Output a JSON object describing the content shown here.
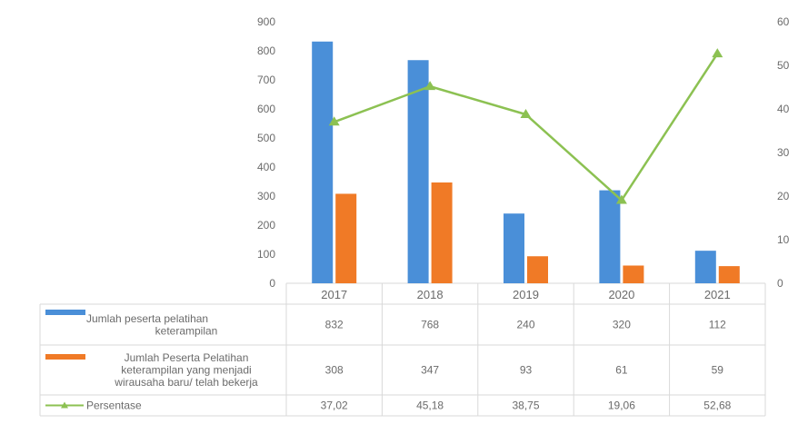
{
  "chart_data": {
    "type": "bar",
    "categories": [
      "2017",
      "2018",
      "2019",
      "2020",
      "2021"
    ],
    "y_left": {
      "ticks": [
        "0",
        "100",
        "200",
        "300",
        "400",
        "500",
        "600",
        "700",
        "800",
        "900"
      ],
      "ylim": [
        0,
        900
      ]
    },
    "y_right": {
      "ticks": [
        "0",
        "10",
        "20",
        "30",
        "40",
        "50",
        "60"
      ],
      "ylim": [
        0,
        60
      ]
    },
    "series": [
      {
        "name": "Jumlah peserta pelatihan keterampilan",
        "legend_lines": [
          "Jumlah peserta pelatihan",
          "keterampilan"
        ],
        "kind": "bar",
        "axis": "left",
        "color": "#4a8fd8",
        "values": [
          832,
          768,
          240,
          320,
          112
        ],
        "table_labels": [
          "832",
          "768",
          "240",
          "320",
          "112"
        ]
      },
      {
        "name": "Jumlah Peserta Pelatihan keterampilan yang menjadi wirausaha baru/ telah bekerja",
        "legend_lines": [
          "Jumlah Peserta Pelatihan",
          "keterampilan yang menjadi",
          "wirausaha baru/ telah bekerja"
        ],
        "kind": "bar",
        "axis": "left",
        "color": "#f07a26",
        "values": [
          308,
          347,
          93,
          61,
          59
        ],
        "table_labels": [
          "308",
          "347",
          "93",
          "61",
          "59"
        ]
      },
      {
        "name": "Persentase",
        "legend_lines": [
          "Persentase"
        ],
        "kind": "line",
        "axis": "right",
        "color": "#8cc152",
        "values": [
          37.02,
          45.18,
          38.75,
          19.06,
          52.68
        ],
        "table_labels": [
          "37,02",
          "45,18",
          "38,75",
          "19,06",
          "52,68"
        ]
      }
    ],
    "grid": false,
    "legend": "data-table"
  }
}
